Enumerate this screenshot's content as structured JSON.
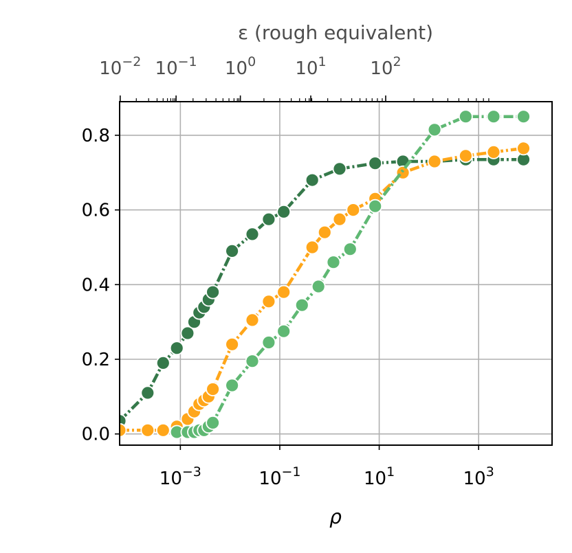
{
  "chart_data": {
    "type": "line",
    "xlabel": "ρ",
    "x2label": "ε (rough equivalent)",
    "ylabel": "",
    "x_scale": "log",
    "xlim": [
      6e-05,
      30000
    ],
    "ylim": [
      -0.03,
      0.89
    ],
    "x_ticks": [
      {
        "value": 0.001,
        "base": "10",
        "exp": "−3"
      },
      {
        "value": 0.1,
        "base": "10",
        "exp": "−1"
      },
      {
        "value": 10,
        "base": "10",
        "exp": "1"
      },
      {
        "value": 1000,
        "base": "10",
        "exp": "3"
      }
    ],
    "y_ticks": [
      {
        "value": 0.0,
        "label": "0.0"
      },
      {
        "value": 0.2,
        "label": "0.2"
      },
      {
        "value": 0.4,
        "label": "0.4"
      },
      {
        "value": 0.6,
        "label": "0.6"
      },
      {
        "value": 0.8,
        "label": "0.8"
      }
    ],
    "x2_ticks": [
      {
        "rho": 6.16e-05,
        "base": "10",
        "exp": "−2"
      },
      {
        "rho": 0.00082,
        "base": "10",
        "exp": "−1"
      },
      {
        "rho": 0.0161,
        "base": "10",
        "exp": "0"
      },
      {
        "rho": 0.42,
        "base": "10",
        "exp": "1"
      },
      {
        "rho": 13.5,
        "base": "10",
        "exp": "2"
      }
    ],
    "x2_minor": [
      0.00013,
      0.00023,
      0.00034,
      0.00045,
      0.00055,
      0.00064,
      0.00071,
      0.00077,
      0.0018,
      0.0033,
      0.0052,
      0.0072,
      0.0095,
      0.012,
      0.014,
      0.015,
      0.048,
      0.1,
      0.17,
      0.25,
      0.33,
      0.39,
      0.42,
      0.44,
      0.92,
      1.7,
      2.8,
      4.1,
      5.5,
      7.2,
      9.2,
      11.5,
      50,
      120,
      240,
      400,
      620,
      900,
      1250,
      1600
    ],
    "grid": true,
    "legend": "none",
    "series": [
      {
        "color": "#35794a",
        "x": [
          6e-05,
          0.00022,
          0.00045,
          0.00085,
          0.0014,
          0.0019,
          0.0024,
          0.003,
          0.0037,
          0.0045,
          0.011,
          0.028,
          0.06,
          0.12,
          0.45,
          1.6,
          8.3,
          30,
          130,
          550,
          2000,
          8000
        ],
        "values": [
          0.035,
          0.11,
          0.19,
          0.23,
          0.27,
          0.3,
          0.325,
          0.34,
          0.36,
          0.38,
          0.49,
          0.535,
          0.575,
          0.595,
          0.68,
          0.71,
          0.725,
          0.73,
          0.73,
          0.735,
          0.735,
          0.735
        ]
      },
      {
        "color": "#ffa61a",
        "x": [
          6e-05,
          0.00022,
          0.00045,
          0.00085,
          0.0014,
          0.0019,
          0.0024,
          0.003,
          0.0037,
          0.0045,
          0.011,
          0.028,
          0.06,
          0.12,
          0.45,
          0.8,
          1.6,
          3.0,
          8.3,
          30,
          130,
          550,
          2000,
          8000
        ],
        "values": [
          0.01,
          0.01,
          0.01,
          0.02,
          0.04,
          0.06,
          0.08,
          0.09,
          0.1,
          0.12,
          0.24,
          0.305,
          0.355,
          0.38,
          0.5,
          0.54,
          0.575,
          0.6,
          0.63,
          0.7,
          0.73,
          0.745,
          0.755,
          0.765
        ]
      },
      {
        "color": "#5fb873",
        "x": [
          0.00085,
          0.0014,
          0.0019,
          0.0024,
          0.003,
          0.0037,
          0.0045,
          0.011,
          0.028,
          0.06,
          0.12,
          0.28,
          0.6,
          1.2,
          2.6,
          8.3,
          130,
          550,
          2000,
          8000
        ],
        "values": [
          0.005,
          0.005,
          0.005,
          0.01,
          0.01,
          0.02,
          0.03,
          0.13,
          0.195,
          0.245,
          0.275,
          0.345,
          0.395,
          0.46,
          0.495,
          0.61,
          0.815,
          0.85,
          0.85,
          0.85
        ]
      }
    ]
  }
}
